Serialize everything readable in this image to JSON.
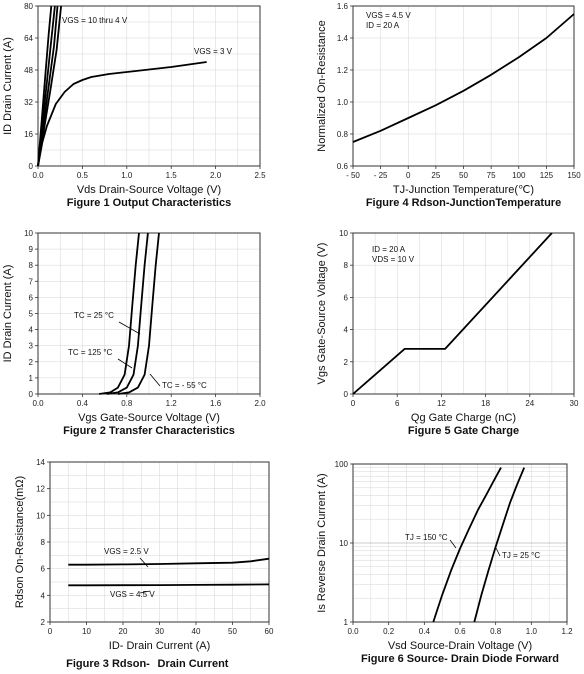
{
  "chart_data": [
    {
      "type": "line",
      "title": "Figure 1 Output Characteristics",
      "xlabel": "Vds Drain-Source Voltage (V)",
      "ylabel": "ID Drain Current (A)",
      "xlim": [
        0,
        2.5
      ],
      "ylim": [
        0,
        80
      ],
      "x_ticks": [
        "0.0",
        "0.5",
        "1.0",
        "1.5",
        "2.0",
        "2.5"
      ],
      "y_ticks": [
        "0",
        "16",
        "32",
        "48",
        "64",
        "80"
      ],
      "annotations": [
        "VGS = 10 thru 4 V",
        "VGS = 3 V"
      ],
      "series": [
        {
          "name": "VGS = 10 thru 4 V",
          "x": [
            0,
            0.04,
            0.08,
            0.12,
            0.15
          ],
          "y": [
            0,
            22,
            44,
            66,
            80
          ]
        },
        {
          "name": "VGS = 10 thru 4 V",
          "x": [
            0,
            0.05,
            0.1,
            0.15,
            0.19
          ],
          "y": [
            0,
            21,
            42,
            63,
            80
          ]
        },
        {
          "name": "VGS = 10 thru 4 V",
          "x": [
            0,
            0.06,
            0.12,
            0.18,
            0.22
          ],
          "y": [
            0,
            20,
            40,
            60,
            80
          ]
        },
        {
          "name": "VGS = 10 thru 4 V",
          "x": [
            0,
            0.07,
            0.14,
            0.21,
            0.26
          ],
          "y": [
            0,
            19,
            38,
            58,
            80
          ]
        },
        {
          "name": "VGS = 3 V",
          "x": [
            0,
            0.05,
            0.1,
            0.2,
            0.3,
            0.4,
            0.5,
            0.6,
            0.8,
            1.0,
            1.5,
            1.9
          ],
          "y": [
            0,
            12,
            20,
            31,
            37,
            41,
            43,
            44.5,
            46,
            47,
            49.5,
            52
          ]
        }
      ]
    },
    {
      "type": "line",
      "title": "Figure 2 Transfer Characteristics",
      "xlabel": "Vgs Gate-Source Voltage (V)",
      "ylabel": "ID Drain Current (A)",
      "xlim": [
        0,
        2.0
      ],
      "ylim": [
        0,
        10
      ],
      "x_ticks": [
        "0.0",
        "0.4",
        "0.8",
        "1.2",
        "1.6",
        "2.0"
      ],
      "y_ticks": [
        "0",
        "1",
        "2",
        "3",
        "4",
        "5",
        "6",
        "7",
        "8",
        "9",
        "10"
      ],
      "annotations": [
        "TC = 25 °C",
        "TC = 125 °C",
        "TC = - 55 °C"
      ],
      "series": [
        {
          "name": "TC = 125 °C",
          "x": [
            0.55,
            0.65,
            0.72,
            0.78,
            0.82,
            0.85,
            0.88,
            0.91
          ],
          "y": [
            0,
            0.1,
            0.4,
            1.2,
            3,
            5.5,
            8,
            10
          ]
        },
        {
          "name": "TC = 25 °C",
          "x": [
            0.62,
            0.72,
            0.8,
            0.86,
            0.9,
            0.93,
            0.96,
            0.99
          ],
          "y": [
            0,
            0.1,
            0.4,
            1.2,
            3,
            5.5,
            8,
            10
          ]
        },
        {
          "name": "TC = - 55 °C",
          "x": [
            0.72,
            0.82,
            0.9,
            0.96,
            1.0,
            1.03,
            1.06,
            1.09
          ],
          "y": [
            0,
            0.1,
            0.4,
            1.2,
            3,
            5.5,
            8,
            10
          ]
        }
      ]
    },
    {
      "type": "line",
      "title": "Figure 3 Rdson-",
      "title_suffix": "Drain Current",
      "xlabel": "ID- Drain Current (A)",
      "ylabel": "Rdson On-Resistance(mΩ)",
      "xlim": [
        0,
        60
      ],
      "ylim": [
        2,
        14
      ],
      "x_ticks": [
        "0",
        "10",
        "20",
        "30",
        "40",
        "50",
        "60"
      ],
      "y_ticks": [
        "2",
        "4",
        "6",
        "8",
        "10",
        "12",
        "14"
      ],
      "annotations": [
        "VGS = 2.5 V",
        "VGS = 4.5 V"
      ],
      "series": [
        {
          "name": "VGS = 2.5 V",
          "x": [
            5,
            10,
            20,
            30,
            40,
            50,
            55,
            60
          ],
          "y": [
            6.3,
            6.3,
            6.32,
            6.35,
            6.4,
            6.45,
            6.55,
            6.75
          ]
        },
        {
          "name": "VGS = 4.5 V",
          "x": [
            5,
            10,
            20,
            30,
            40,
            50,
            60
          ],
          "y": [
            4.75,
            4.75,
            4.76,
            4.77,
            4.78,
            4.8,
            4.82
          ]
        }
      ]
    },
    {
      "type": "line",
      "title": "Figure 4 Rdson-JunctionTemperature",
      "xlabel": "TJ-Junction Temperature(℃)",
      "ylabel": "Normalized On-Resistance",
      "xlim": [
        -50,
        150
      ],
      "ylim": [
        0.6,
        1.6
      ],
      "x_ticks": [
        "- 50",
        "- 25",
        "0",
        "25",
        "50",
        "75",
        "100",
        "125",
        "150"
      ],
      "y_ticks": [
        "0.6",
        "0.8",
        "1.0",
        "1.2",
        "1.4",
        "1.6"
      ],
      "annotations": [
        "VGS = 4.5 V",
        "ID = 20 A"
      ],
      "series": [
        {
          "x": [
            -50,
            -25,
            0,
            25,
            50,
            75,
            100,
            125,
            150
          ],
          "y": [
            0.75,
            0.82,
            0.9,
            0.98,
            1.07,
            1.17,
            1.28,
            1.4,
            1.55
          ]
        }
      ]
    },
    {
      "type": "line",
      "title": "Figure 5 Gate Charge",
      "xlabel": "Qg Gate Charge (nC)",
      "ylabel": "Vgs Gate-Source Voltage (V)",
      "xlim": [
        0,
        30
      ],
      "ylim": [
        0,
        10
      ],
      "x_ticks": [
        "0",
        "6",
        "12",
        "18",
        "24",
        "30"
      ],
      "y_ticks": [
        "0",
        "2",
        "4",
        "6",
        "8",
        "10"
      ],
      "annotations": [
        "ID = 20 A",
        "VDS = 10 V"
      ],
      "series": [
        {
          "x": [
            0,
            7,
            12.5,
            27
          ],
          "y": [
            0,
            2.8,
            2.8,
            10
          ]
        }
      ]
    },
    {
      "type": "line",
      "title": "Figure 6 Source- Drain Diode Forward",
      "xlabel": "Vsd Source-Drain Voltage (V)",
      "ylabel": "Is Reverse Drain Current (A)",
      "xlim": [
        0,
        1.2
      ],
      "ylim": [
        1,
        100
      ],
      "yscale": "log",
      "x_ticks": [
        "0.0",
        "0.2",
        "0.4",
        "0.6",
        "0.8",
        "1.0",
        "1.2"
      ],
      "y_ticks": [
        "1",
        "10",
        "100"
      ],
      "annotations": [
        "TJ = 150 °C",
        "TJ = 25 °C"
      ],
      "series": [
        {
          "name": "TJ = 150 °C",
          "x": [
            0.45,
            0.5,
            0.55,
            0.6,
            0.65,
            0.7,
            0.75,
            0.8,
            0.83
          ],
          "y": [
            1,
            2.2,
            4.5,
            8.5,
            15,
            26,
            42,
            68,
            90
          ]
        },
        {
          "name": "TJ = 25 °C",
          "x": [
            0.68,
            0.72,
            0.76,
            0.8,
            0.84,
            0.88,
            0.92,
            0.96
          ],
          "y": [
            1,
            2.2,
            4.5,
            9,
            17,
            32,
            55,
            90
          ]
        }
      ]
    }
  ]
}
